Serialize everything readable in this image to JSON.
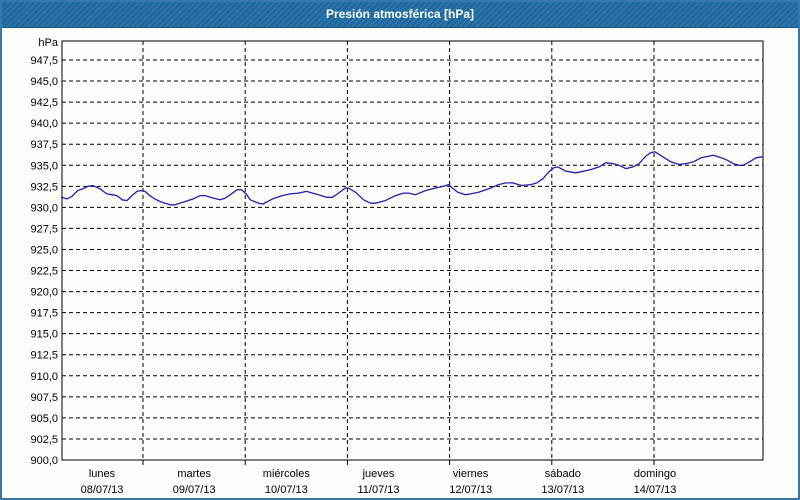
{
  "window": {
    "title": "Presión atmosférica [hPa]"
  },
  "chart_data": {
    "type": "line",
    "title": "Presión atmosférica [hPa]",
    "ylabel": "hPa",
    "xlabel": "",
    "legend_position": "none",
    "grid": true,
    "line_color": "#1f1fb0",
    "ylim": [
      900.0,
      950.0
    ],
    "y_tick_step": 2.5,
    "y_tick_labels": [
      "947,5",
      "945,0",
      "942,5",
      "940,0",
      "937,5",
      "935,0",
      "932,5",
      "930,0",
      "927,5",
      "925,0",
      "922,5",
      "920,0",
      "917,5",
      "915,0",
      "912,5",
      "910,0",
      "907,5",
      "905,0",
      "902,5",
      "900,0"
    ],
    "y_tick_values": [
      947.5,
      945.0,
      942.5,
      940.0,
      937.5,
      935.0,
      932.5,
      930.0,
      927.5,
      925.0,
      922.5,
      920.0,
      917.5,
      915.0,
      912.5,
      910.0,
      907.5,
      905.0,
      902.5,
      900.0
    ],
    "x_days": [
      {
        "name": "lunes",
        "date": "08/07/13"
      },
      {
        "name": "martes",
        "date": "09/07/13"
      },
      {
        "name": "miércoles",
        "date": "10/07/13"
      },
      {
        "name": "jueves",
        "date": "11/07/13"
      },
      {
        "name": "viernes",
        "date": "12/07/13"
      },
      {
        "name": "sábado",
        "date": "13/07/13"
      },
      {
        "name": "domingo",
        "date": "14/07/13"
      }
    ],
    "x_midnight_hours": [
      24,
      48,
      72,
      96,
      120,
      144
    ],
    "x_range_hours": [
      4.9,
      169.6
    ],
    "series": [
      {
        "name": "Presión atmosférica",
        "unit": "hPa",
        "points_hours_hpa": [
          [
            4.9,
            931.2
          ],
          [
            6.1,
            931.0
          ],
          [
            7.3,
            931.3
          ],
          [
            8.7,
            932.0
          ],
          [
            9.9,
            932.2
          ],
          [
            11.1,
            932.5
          ],
          [
            12.2,
            932.6
          ],
          [
            13.9,
            932.2
          ],
          [
            15.5,
            931.6
          ],
          [
            16.7,
            931.5
          ],
          [
            17.9,
            931.4
          ],
          [
            19.1,
            930.9
          ],
          [
            20.2,
            930.8
          ],
          [
            21.4,
            931.4
          ],
          [
            22.6,
            931.9
          ],
          [
            23.5,
            932.0
          ],
          [
            24.5,
            931.9
          ],
          [
            25.6,
            931.4
          ],
          [
            26.8,
            931.0
          ],
          [
            28.0,
            930.7
          ],
          [
            29.2,
            930.5
          ],
          [
            30.4,
            930.3
          ],
          [
            31.5,
            930.3
          ],
          [
            33.4,
            930.6
          ],
          [
            35.8,
            931.0
          ],
          [
            37.4,
            931.4
          ],
          [
            38.6,
            931.4
          ],
          [
            40.5,
            931.1
          ],
          [
            42.1,
            930.9
          ],
          [
            43.3,
            931.1
          ],
          [
            44.5,
            931.5
          ],
          [
            46.1,
            932.1
          ],
          [
            47.1,
            932.1
          ],
          [
            48.2,
            931.6
          ],
          [
            49.2,
            930.9
          ],
          [
            51.1,
            930.5
          ],
          [
            52.2,
            930.4
          ],
          [
            54.4,
            931.0
          ],
          [
            56.7,
            931.4
          ],
          [
            58.6,
            931.6
          ],
          [
            60.5,
            931.7
          ],
          [
            62.4,
            931.9
          ],
          [
            63.8,
            931.7
          ],
          [
            65.2,
            931.5
          ],
          [
            67.1,
            931.2
          ],
          [
            68.5,
            931.2
          ],
          [
            69.9,
            931.7
          ],
          [
            71.5,
            932.3
          ],
          [
            72.2,
            932.3
          ],
          [
            73.9,
            931.8
          ],
          [
            75.8,
            930.9
          ],
          [
            77.4,
            930.5
          ],
          [
            78.6,
            930.5
          ],
          [
            80.9,
            930.8
          ],
          [
            83.3,
            931.4
          ],
          [
            85.2,
            931.7
          ],
          [
            86.4,
            931.7
          ],
          [
            88.0,
            931.5
          ],
          [
            90.4,
            932.0
          ],
          [
            92.7,
            932.3
          ],
          [
            94.6,
            932.5
          ],
          [
            95.8,
            932.7
          ],
          [
            96.9,
            932.2
          ],
          [
            97.9,
            931.8
          ],
          [
            99.8,
            931.5
          ],
          [
            100.9,
            931.6
          ],
          [
            102.8,
            931.8
          ],
          [
            105.2,
            932.2
          ],
          [
            107.5,
            932.7
          ],
          [
            109.2,
            932.9
          ],
          [
            110.8,
            932.9
          ],
          [
            112.9,
            932.6
          ],
          [
            115.1,
            932.7
          ],
          [
            116.5,
            932.9
          ],
          [
            117.9,
            933.4
          ],
          [
            119.3,
            934.2
          ],
          [
            120.5,
            934.7
          ],
          [
            121.4,
            934.8
          ],
          [
            123.3,
            934.3
          ],
          [
            125.6,
            934.1
          ],
          [
            127.5,
            934.3
          ],
          [
            129.2,
            934.5
          ],
          [
            131.1,
            934.8
          ],
          [
            132.7,
            935.3
          ],
          [
            134.4,
            935.2
          ],
          [
            135.8,
            935.0
          ],
          [
            137.4,
            934.6
          ],
          [
            139.1,
            934.8
          ],
          [
            140.5,
            935.2
          ],
          [
            142.1,
            936.1
          ],
          [
            143.3,
            936.5
          ],
          [
            144.2,
            936.6
          ],
          [
            146.1,
            936.0
          ],
          [
            148.0,
            935.4
          ],
          [
            149.9,
            935.1
          ],
          [
            151.5,
            935.2
          ],
          [
            153.2,
            935.4
          ],
          [
            155.1,
            935.9
          ],
          [
            157.9,
            936.2
          ],
          [
            159.8,
            935.9
          ],
          [
            161.2,
            935.6
          ],
          [
            162.6,
            935.2
          ],
          [
            164.0,
            935.0
          ],
          [
            164.9,
            935.0
          ],
          [
            166.4,
            935.4
          ],
          [
            168.0,
            935.9
          ],
          [
            169.6,
            936.0
          ]
        ]
      }
    ]
  }
}
